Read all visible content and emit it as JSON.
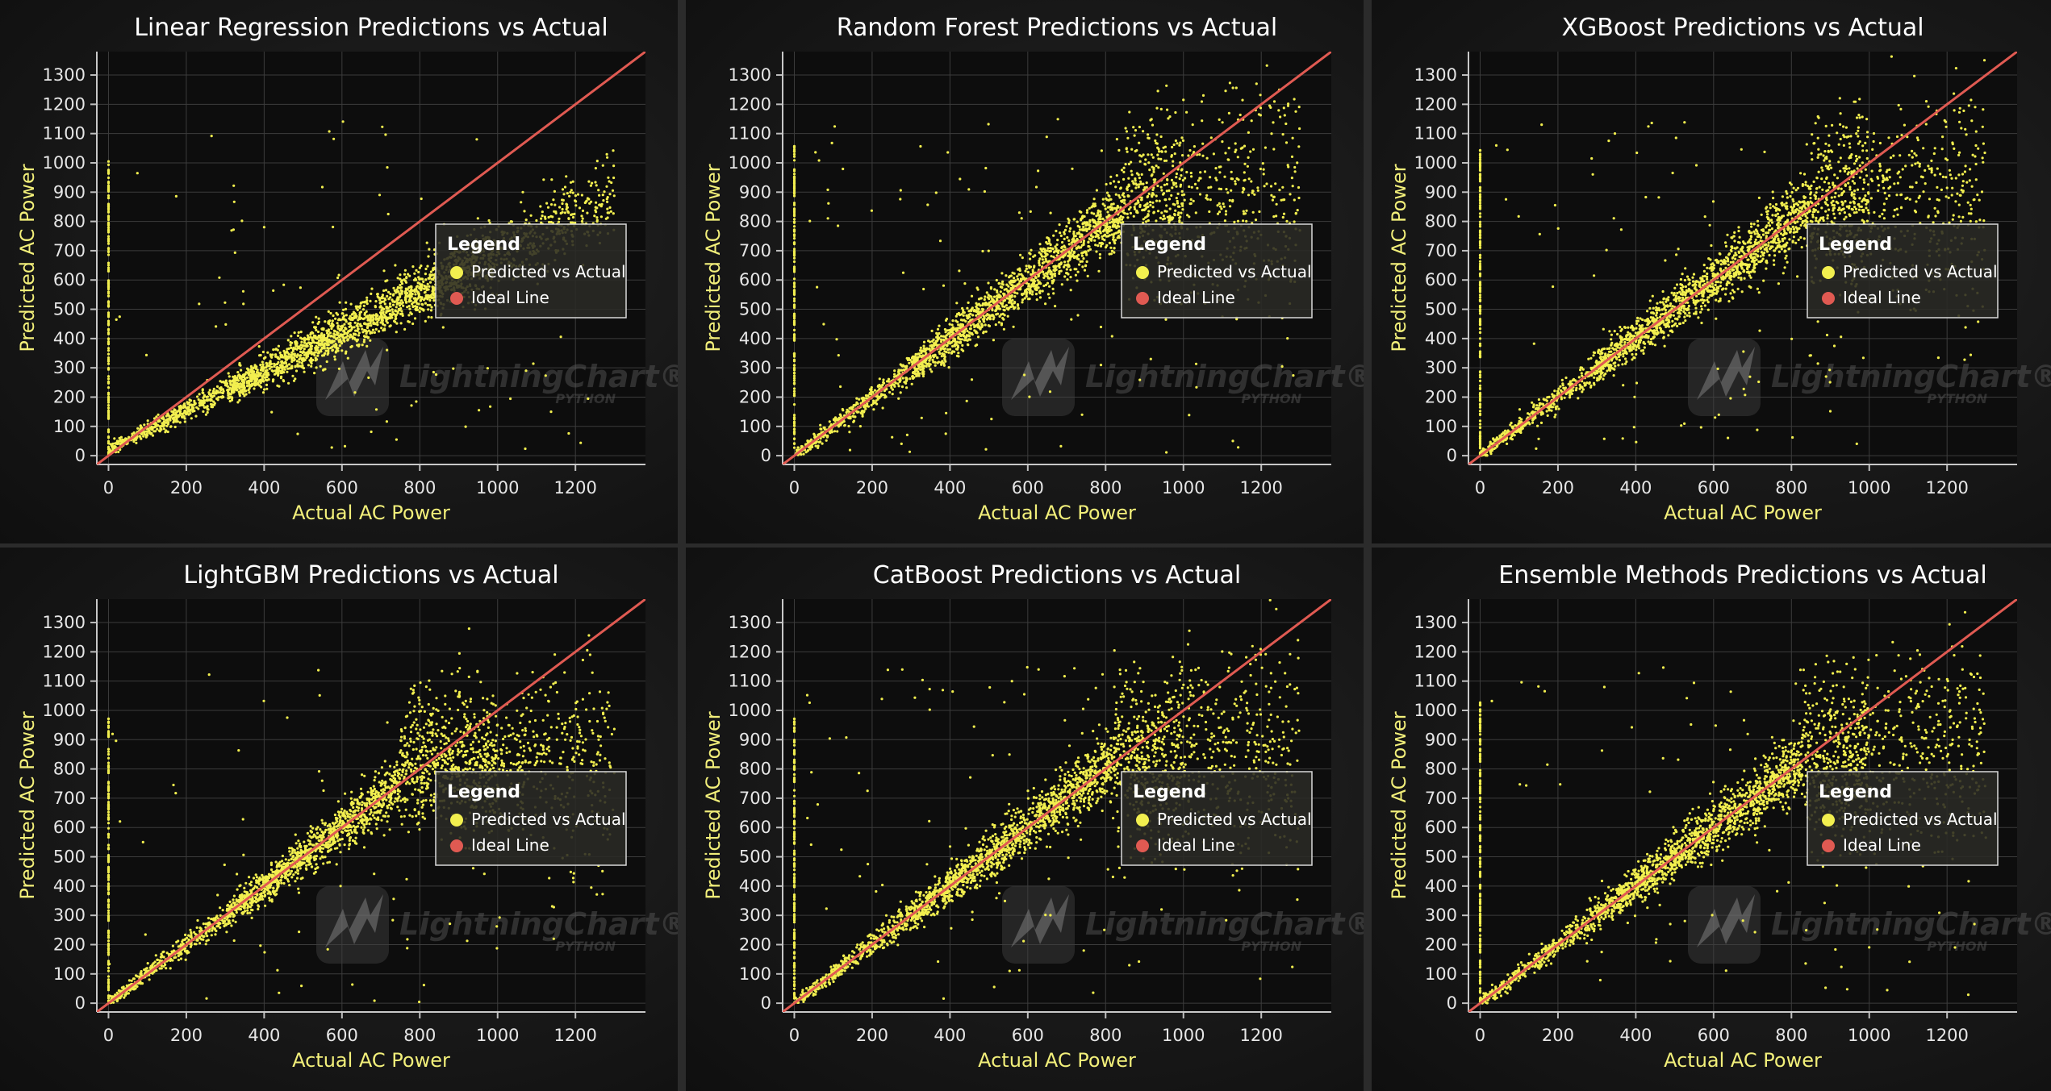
{
  "colors": {
    "points": "#f2ef4f",
    "ideal_line": "#e05a52",
    "axis_title": "#f2ef7a",
    "grid": "#3c3c3c",
    "legend_border": "#d9d9d9",
    "legend_bg": "#2a2a25"
  },
  "watermark": {
    "brand": "LightningChart",
    "reg": "®",
    "sub": "PYTHON"
  },
  "chart_data": [
    {
      "type": "scatter",
      "title": "Linear Regression Predictions vs Actual",
      "xlabel": "Actual AC Power",
      "ylabel": "Predicted AC Power",
      "xlim": [
        -30,
        1380
      ],
      "ylim": [
        -30,
        1380
      ],
      "xticks": [
        0,
        200,
        400,
        600,
        800,
        1000,
        1200
      ],
      "yticks": [
        0,
        100,
        200,
        300,
        400,
        500,
        600,
        700,
        800,
        900,
        1000,
        1100,
        1200,
        1300
      ],
      "grid": true,
      "legend_position": "right-center",
      "legend": {
        "title": "Legend",
        "entries": [
          "Predicted vs Actual",
          "Ideal Line"
        ]
      },
      "series": [
        {
          "name": "Predicted vs Actual",
          "kind": "points",
          "relation": "linear",
          "slope": 0.67,
          "intercept": 20,
          "spread": 0.05,
          "outlier_frac": 0.03,
          "zero_column_max": 1010
        },
        {
          "name": "Ideal Line",
          "kind": "line",
          "x": [
            -30,
            1380
          ],
          "y": [
            -30,
            1380
          ]
        }
      ]
    },
    {
      "type": "scatter",
      "title": "Random Forest Predictions vs Actual",
      "xlabel": "Actual AC Power",
      "ylabel": "Predicted AC Power",
      "xlim": [
        -30,
        1380
      ],
      "ylim": [
        -30,
        1380
      ],
      "xticks": [
        0,
        200,
        400,
        600,
        800,
        1000,
        1200
      ],
      "yticks": [
        0,
        100,
        200,
        300,
        400,
        500,
        600,
        700,
        800,
        900,
        1000,
        1100,
        1200,
        1300
      ],
      "grid": true,
      "legend_position": "right-center",
      "legend": {
        "title": "Legend",
        "entries": [
          "Predicted vs Actual",
          "Ideal Line"
        ]
      },
      "series": [
        {
          "name": "Predicted vs Actual",
          "kind": "points",
          "relation": "saturating",
          "knee": 850,
          "plateau": 870,
          "spread": 0.06,
          "outlier_frac": 0.04,
          "zero_column_max": 1060
        },
        {
          "name": "Ideal Line",
          "kind": "line",
          "x": [
            -30,
            1380
          ],
          "y": [
            -30,
            1380
          ]
        }
      ]
    },
    {
      "type": "scatter",
      "title": "XGBoost Predictions vs Actual",
      "xlabel": "Actual AC Power",
      "ylabel": "Predicted AC Power",
      "xlim": [
        -30,
        1380
      ],
      "ylim": [
        -30,
        1380
      ],
      "xticks": [
        0,
        200,
        400,
        600,
        800,
        1000,
        1200
      ],
      "yticks": [
        0,
        100,
        200,
        300,
        400,
        500,
        600,
        700,
        800,
        900,
        1000,
        1100,
        1200,
        1300
      ],
      "grid": true,
      "legend_position": "right-center",
      "legend": {
        "title": "Legend",
        "entries": [
          "Predicted vs Actual",
          "Ideal Line"
        ]
      },
      "series": [
        {
          "name": "Predicted vs Actual",
          "kind": "points",
          "relation": "saturating",
          "knee": 850,
          "plateau": 860,
          "spread": 0.06,
          "outlier_frac": 0.04,
          "zero_column_max": 1050
        },
        {
          "name": "Ideal Line",
          "kind": "line",
          "x": [
            -30,
            1380
          ],
          "y": [
            -30,
            1380
          ]
        }
      ]
    },
    {
      "type": "scatter",
      "title": "LightGBM Predictions vs Actual",
      "xlabel": "Actual AC Power",
      "ylabel": "Predicted AC Power",
      "xlim": [
        -30,
        1380
      ],
      "ylim": [
        -30,
        1380
      ],
      "xticks": [
        0,
        200,
        400,
        600,
        800,
        1000,
        1200
      ],
      "yticks": [
        0,
        100,
        200,
        300,
        400,
        500,
        600,
        700,
        800,
        900,
        1000,
        1100,
        1200,
        1300
      ],
      "grid": true,
      "legend_position": "right-center",
      "legend": {
        "title": "Legend",
        "entries": [
          "Predicted vs Actual",
          "Ideal Line"
        ]
      },
      "series": [
        {
          "name": "Predicted vs Actual",
          "kind": "points",
          "relation": "saturating",
          "knee": 750,
          "plateau": 820,
          "spread": 0.05,
          "outlier_frac": 0.03,
          "zero_column_max": 980
        },
        {
          "name": "Ideal Line",
          "kind": "line",
          "x": [
            -30,
            1380
          ],
          "y": [
            -30,
            1380
          ]
        }
      ]
    },
    {
      "type": "scatter",
      "title": "CatBoost Predictions vs Actual",
      "xlabel": "Actual AC Power",
      "ylabel": "Predicted AC Power",
      "xlim": [
        -30,
        1380
      ],
      "ylim": [
        -30,
        1380
      ],
      "xticks": [
        0,
        200,
        400,
        600,
        800,
        1000,
        1200
      ],
      "yticks": [
        0,
        100,
        200,
        300,
        400,
        500,
        600,
        700,
        800,
        900,
        1000,
        1100,
        1200,
        1300
      ],
      "grid": true,
      "legend_position": "right-center",
      "legend": {
        "title": "Legend",
        "entries": [
          "Predicted vs Actual",
          "Ideal Line"
        ]
      },
      "series": [
        {
          "name": "Predicted vs Actual",
          "kind": "points",
          "relation": "saturating",
          "knee": 820,
          "plateau": 840,
          "spread": 0.06,
          "outlier_frac": 0.04,
          "zero_column_max": 980
        },
        {
          "name": "Ideal Line",
          "kind": "line",
          "x": [
            -30,
            1380
          ],
          "y": [
            -30,
            1380
          ]
        }
      ]
    },
    {
      "type": "scatter",
      "title": "Ensemble Methods Predictions vs Actual",
      "xlabel": "Actual AC Power",
      "ylabel": "Predicted AC Power",
      "xlim": [
        -30,
        1380
      ],
      "ylim": [
        -30,
        1380
      ],
      "xticks": [
        0,
        200,
        400,
        600,
        800,
        1000,
        1200
      ],
      "yticks": [
        0,
        100,
        200,
        300,
        400,
        500,
        600,
        700,
        800,
        900,
        1000,
        1100,
        1200,
        1300
      ],
      "grid": true,
      "legend_position": "right-center",
      "legend": {
        "title": "Legend",
        "entries": [
          "Predicted vs Actual",
          "Ideal Line"
        ]
      },
      "series": [
        {
          "name": "Predicted vs Actual",
          "kind": "points",
          "relation": "saturating",
          "knee": 830,
          "plateau": 850,
          "spread": 0.06,
          "outlier_frac": 0.04,
          "zero_column_max": 1030
        },
        {
          "name": "Ideal Line",
          "kind": "line",
          "x": [
            -30,
            1380
          ],
          "y": [
            -30,
            1380
          ]
        }
      ]
    }
  ]
}
